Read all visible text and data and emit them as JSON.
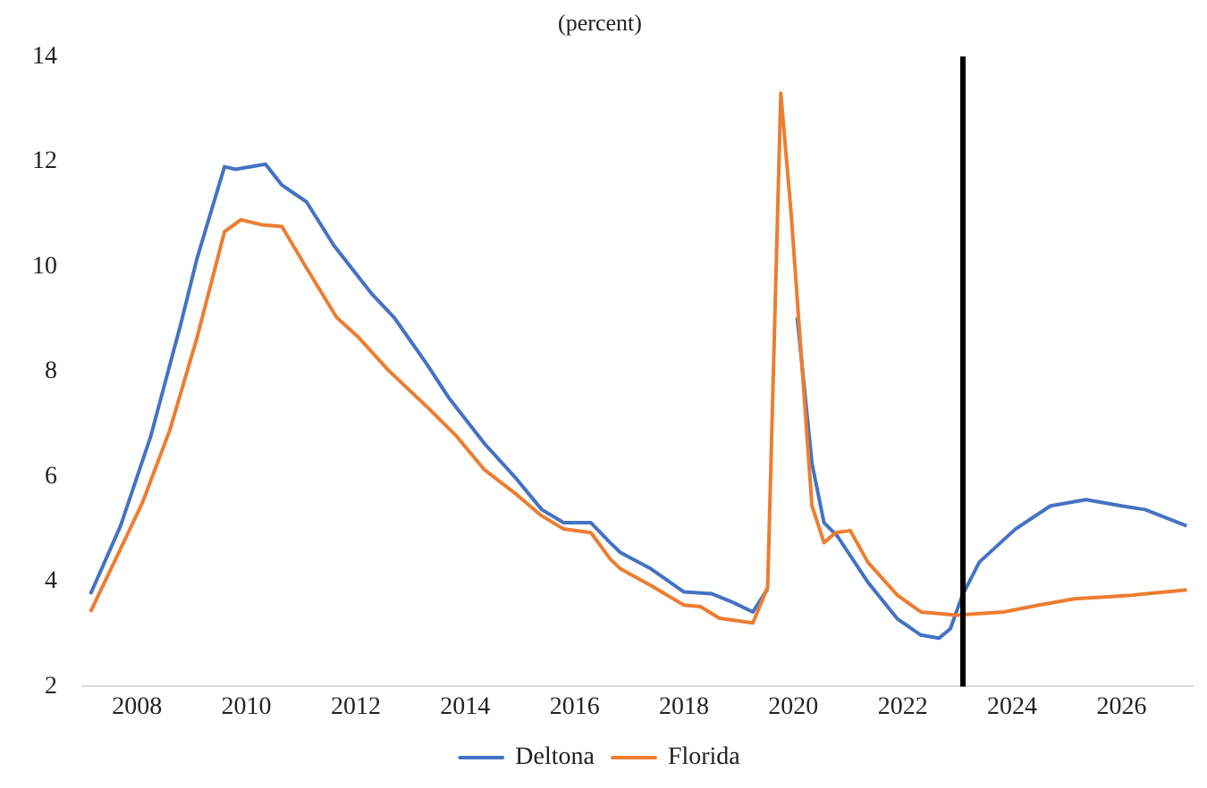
{
  "chart_data": {
    "type": "line",
    "title": "(percent)",
    "xlim": [
      2007,
      2027.3
    ],
    "xticks": [
      2008,
      2010,
      2012,
      2014,
      2016,
      2018,
      2020,
      2022,
      2024,
      2026
    ],
    "ylim": [
      2,
      14
    ],
    "yticks": [
      2,
      4,
      6,
      8,
      10,
      12,
      14
    ],
    "grid": false,
    "legend": "bottom",
    "marker": "none",
    "line_style": "solid",
    "ref_lines": [
      {
        "axis": "x",
        "value": 2023.1,
        "color": "#000000"
      }
    ],
    "series": [
      {
        "name": "Deltona",
        "color": "#4472c4",
        "x": [
          2007.15,
          2007.7,
          2008.25,
          2008.8,
          2009.1,
          2009.6,
          2009.8,
          2010.35,
          2010.65,
          2011.1,
          2011.6,
          2012.3,
          2012.7,
          2013.3,
          2013.7,
          2014.35,
          2014.9,
          2015.4,
          2015.8,
          2016.3,
          2016.65,
          2016.84,
          2017.4,
          2018.0,
          2018.5,
          2018.9,
          2019.26,
          2019.53,
          2019.77,
          2020.07,
          2020.34,
          2020.56,
          2020.8,
          2021.36,
          2021.9,
          2022.33,
          2022.66,
          2022.87,
          2023.09,
          2023.4,
          2024.06,
          2024.7,
          2025.35,
          2026.0,
          2026.43,
          2027.19
        ],
        "values": [
          3.76,
          5.06,
          6.76,
          8.9,
          10.16,
          11.9,
          11.85,
          11.95,
          11.55,
          11.23,
          10.4,
          9.47,
          9.03,
          8.14,
          7.5,
          6.63,
          6.0,
          5.37,
          5.12,
          5.12,
          4.74,
          4.55,
          4.24,
          3.8,
          3.77,
          3.6,
          3.42,
          3.86,
          null,
          9.03,
          6.25,
          5.12,
          4.87,
          3.99,
          3.29,
          2.98,
          2.92,
          3.1,
          3.74,
          4.37,
          5.0,
          5.44,
          5.56,
          5.44,
          5.37,
          5.06
        ]
      },
      {
        "name": "Florida",
        "color": "#ed7d31",
        "x": [
          2007.15,
          2007.7,
          2008.1,
          2008.6,
          2009.1,
          2009.6,
          2009.9,
          2010.3,
          2010.65,
          2011.1,
          2011.65,
          2012.05,
          2012.6,
          2013.3,
          2013.85,
          2014.35,
          2014.9,
          2015.4,
          2015.8,
          2016.3,
          2016.65,
          2016.84,
          2017.4,
          2018.0,
          2018.3,
          2018.65,
          2019.26,
          2019.53,
          2019.77,
          2019.96,
          2020.34,
          2020.56,
          2020.77,
          2021.04,
          2021.36,
          2021.9,
          2022.33,
          2022.98,
          2023.84,
          2024.49,
          2025.14,
          2026.2,
          2027.19
        ],
        "values": [
          3.42,
          4.62,
          5.5,
          6.88,
          8.65,
          10.66,
          10.89,
          10.79,
          10.76,
          9.97,
          9.03,
          8.65,
          8.02,
          7.33,
          6.76,
          6.13,
          5.69,
          5.25,
          5.0,
          4.93,
          4.43,
          4.24,
          3.92,
          3.55,
          3.52,
          3.3,
          3.21,
          3.89,
          13.3,
          11.0,
          5.44,
          4.74,
          4.93,
          4.97,
          4.37,
          3.74,
          3.42,
          3.36,
          3.42,
          3.55,
          3.67,
          3.74,
          3.84
        ]
      }
    ]
  }
}
